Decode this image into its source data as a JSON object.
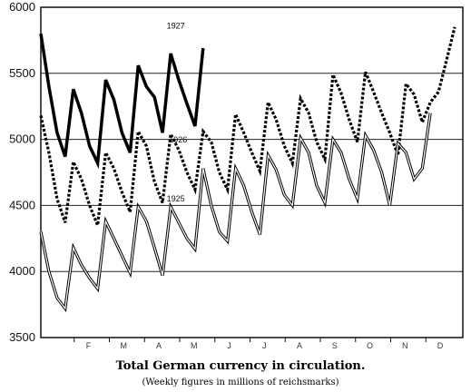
{
  "chart_data": {
    "type": "line",
    "title": "Total German currency in circulation.",
    "subtitle": "(Weekly figures in millions of reichsmarks)",
    "xlabel": "",
    "ylabel": "",
    "ylim": [
      3500,
      6000
    ],
    "yticks": [
      3500,
      4000,
      4500,
      5000,
      5500,
      6000
    ],
    "grid_y": [
      4000,
      4500,
      5000,
      5500
    ],
    "month_labels": [
      "F",
      "M",
      "A",
      "M",
      "J",
      "J",
      "A",
      "S",
      "O",
      "N",
      "D"
    ],
    "x_range": [
      0,
      52
    ],
    "series": [
      {
        "name": "1927",
        "style": "solid-heavy",
        "x": [
          0,
          1,
          2,
          3,
          4,
          5,
          6,
          7,
          8,
          9,
          10,
          11,
          12,
          13,
          14,
          15,
          16,
          17,
          18,
          19,
          20,
          21,
          22,
          23,
          24,
          25
        ],
        "values": [
          5800,
          5400,
          5050,
          4870,
          5380,
          5200,
          4950,
          4820,
          5450,
          5300,
          5050,
          4900,
          5560,
          5400,
          5320,
          5050,
          5650,
          5450,
          5270,
          5100,
          5690,
          null,
          null,
          null,
          null,
          null
        ]
      },
      {
        "name": "1926",
        "style": "dashed-heavy",
        "x": [
          0,
          1,
          2,
          3,
          4,
          5,
          6,
          7,
          8,
          9,
          10,
          11,
          12,
          13,
          14,
          15,
          16,
          17,
          18,
          19,
          20,
          21,
          22,
          23,
          24,
          25,
          26,
          27,
          28,
          29,
          30,
          31,
          32,
          33,
          34,
          35,
          36,
          37,
          38,
          39,
          40,
          41,
          42,
          43,
          44,
          45,
          46,
          47,
          48,
          49,
          50,
          51,
          52
        ],
        "values": [
          5180,
          4900,
          4550,
          4370,
          4830,
          4700,
          4500,
          4350,
          4900,
          4780,
          4600,
          4450,
          5060,
          4950,
          4680,
          4520,
          5040,
          4920,
          4750,
          4620,
          5060,
          4980,
          4750,
          4620,
          5190,
          5050,
          4900,
          4760,
          5280,
          5150,
          4950,
          4820,
          5310,
          5200,
          4980,
          4850,
          5490,
          5350,
          5150,
          4980,
          5510,
          5360,
          5200,
          5050,
          4880,
          5420,
          5340,
          5130,
          5280,
          5360,
          5600,
          5850,
          null
        ]
      },
      {
        "name": "1925",
        "style": "double-thin",
        "x": [
          0,
          1,
          2,
          3,
          4,
          5,
          6,
          7,
          8,
          9,
          10,
          11,
          12,
          13,
          14,
          15,
          16,
          17,
          18,
          19,
          20,
          21,
          22,
          23,
          24,
          25,
          26,
          27,
          28,
          29,
          30,
          31,
          32,
          33,
          34,
          35,
          36,
          37,
          38,
          39,
          40,
          41,
          42,
          43,
          44,
          45,
          46,
          47,
          48,
          49,
          50,
          51,
          52
        ],
        "values": [
          4300,
          4000,
          3800,
          3720,
          4180,
          4050,
          3950,
          3870,
          4380,
          4250,
          4120,
          3990,
          4490,
          4380,
          4180,
          3970,
          4490,
          4370,
          4250,
          4170,
          4780,
          4500,
          4300,
          4230,
          4780,
          4650,
          4450,
          4280,
          4880,
          4770,
          4580,
          4500,
          5010,
          4900,
          4650,
          4520,
          5000,
          4900,
          4700,
          4550,
          5030,
          4920,
          4750,
          4500,
          4970,
          4900,
          4700,
          4780,
          5200,
          null,
          null,
          null,
          null
        ]
      }
    ],
    "series_label_positions": [
      "1927",
      "1926",
      "1925"
    ]
  }
}
